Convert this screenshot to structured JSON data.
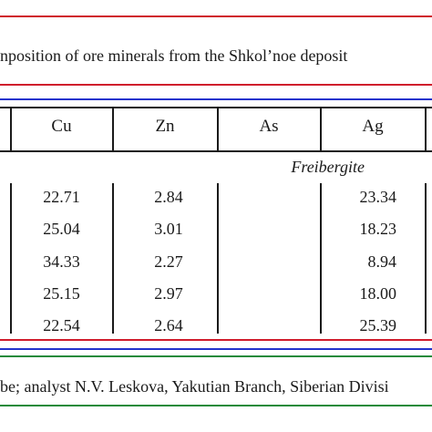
{
  "caption": "nposition of ore minerals from the Shkol’noe deposit",
  "columns": [
    "Cu",
    "Zn",
    "As",
    "Ag"
  ],
  "section_title": "Freibergite",
  "rows": [
    {
      "cu": "22.71",
      "zn": "2.84",
      "as": "",
      "ag": "23.34"
    },
    {
      "cu": "25.04",
      "zn": "3.01",
      "as": "",
      "ag": "18.23"
    },
    {
      "cu": "34.33",
      "zn": "2.27",
      "as": "",
      "ag": "8.94"
    },
    {
      "cu": "25.15",
      "zn": "2.97",
      "as": "",
      "ag": "18.00"
    },
    {
      "cu": "22.54",
      "zn": "2.64",
      "as": "",
      "ag": "25.39"
    }
  ],
  "footnote": "be; analyst N.V. Leskova, Yakutian Branch, Siberian Divisi",
  "colors": {
    "red_rule": "#d01c2c",
    "blue_rule": "#2233cc",
    "green_rule": "#1f8a3a",
    "ink": "#1a1a1a"
  }
}
